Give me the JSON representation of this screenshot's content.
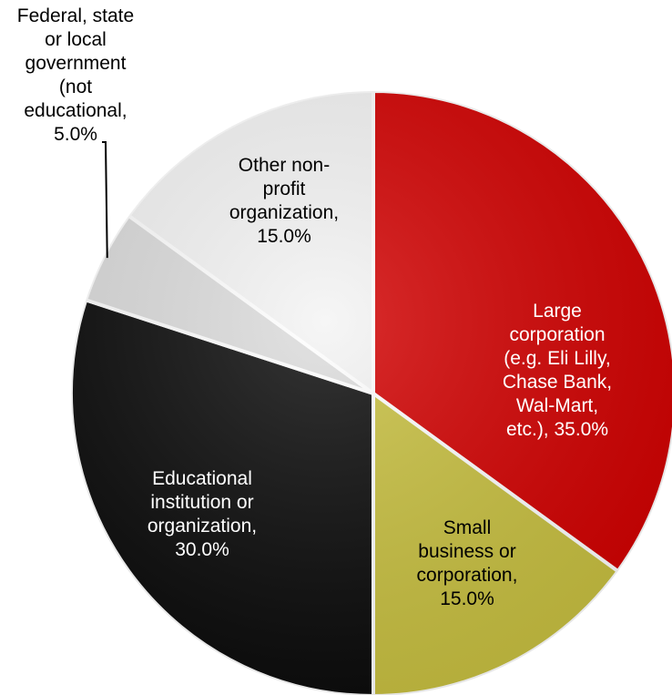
{
  "chart_data": {
    "type": "pie",
    "title": "",
    "start_angle_deg": 0,
    "direction": "clockwise",
    "slices": [
      {
        "name": "Large corporation (e.g. Eli Lilly, Chase Bank, Wal-Mart, etc.)",
        "value": 35.0,
        "label_lines": [
          "Large",
          "corporation",
          "(e.g. Eli Lilly,",
          "Chase Bank,",
          "Wal-Mart,",
          "etc.), 35.0%"
        ],
        "color": "#d20000",
        "text_color": "#ffffff"
      },
      {
        "name": "Small business or corporation",
        "value": 15.0,
        "label_lines": [
          "Small",
          "business or",
          "corporation,",
          "15.0%"
        ],
        "color": "#c8c040",
        "text_color": "#000000"
      },
      {
        "name": "Educational institution or organization",
        "value": 30.0,
        "label_lines": [
          "Educational",
          "institution or",
          "organization,",
          "30.0%"
        ],
        "color": "#0a0a0a",
        "text_color": "#ffffff"
      },
      {
        "name": "Federal, state or local government (not educational",
        "value": 5.0,
        "label_lines": [
          "Federal, state",
          "or local",
          "government",
          "(not",
          "educational,",
          "5.0%"
        ],
        "color": "#dcdcdc",
        "text_color": "#000000",
        "outside_label": true
      },
      {
        "name": "Other non-profit organization",
        "value": 15.0,
        "label_lines": [
          "Other non-",
          "profit",
          "organization,",
          "15.0%"
        ],
        "color": "#f4f4f4",
        "text_color": "#000000"
      }
    ]
  }
}
